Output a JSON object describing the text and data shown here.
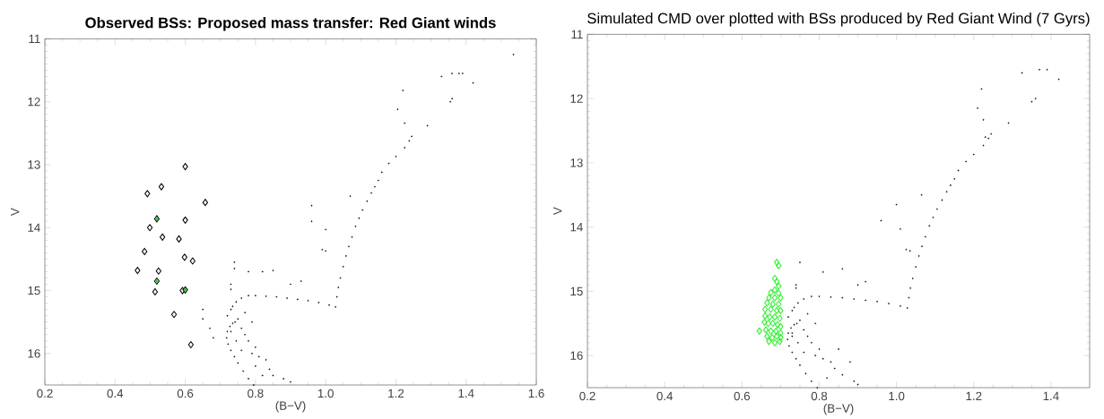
{
  "chart_data": [
    {
      "type": "scatter",
      "title": "Observed BSs: Proposed mass transfer: Red Giant winds",
      "xlabel": "(B−V)",
      "ylabel": "V",
      "xlim": [
        0.2,
        1.6
      ],
      "ylim": [
        16.5,
        11
      ],
      "xticks": [
        {
          "value": 0.2,
          "label": "0.2"
        },
        {
          "value": 0.4,
          "label": "0.4"
        },
        {
          "value": 0.6,
          "label": "0.6"
        },
        {
          "value": 0.8,
          "label": "0.8"
        },
        {
          "value": 1.0,
          "label": "1.0"
        },
        {
          "value": 1.2,
          "label": "1.2"
        },
        {
          "value": 1.4,
          "label": "1.4"
        },
        {
          "value": 1.6,
          "label": "1.6"
        }
      ],
      "yticks": [
        11,
        12,
        13,
        14,
        15,
        16
      ],
      "series": [
        {
          "color": "#000000",
          "marker": "circle",
          "x": [
            0.795,
            0.78,
            0.765,
            0.75,
            0.74,
            0.73,
            0.722,
            0.718,
            0.72,
            0.727,
            0.735,
            0.742,
            0.73,
            0.735,
            0.745,
            0.76,
            0.78,
            0.8,
            0.83,
            0.86,
            0.89,
            0.92,
            0.95,
            0.98,
            1.01,
            1.028,
            1.032,
            1.036,
            1.042,
            1.05,
            1.058,
            1.066,
            1.075,
            1.085,
            1.095,
            1.105,
            1.118,
            1.13,
            1.14,
            1.15,
            1.16,
            1.18,
            1.2,
            1.225,
            1.238,
            1.245,
            1.205,
            1.22,
            1.225,
            1.29,
            1.33,
            1.36,
            1.38,
            1.39,
            1.42,
            1.355,
            1.36,
            1.535,
            0.96,
            1.0,
            0.99,
            1.0,
            1.07,
            0.96,
            0.93,
            0.9,
            0.85,
            0.82,
            0.78,
            0.74,
            0.74,
            0.73,
            0.73,
            0.65,
            0.65,
            0.67,
            0.68,
            0.72,
            0.75,
            0.76,
            0.77,
            0.78,
            0.8,
            0.81,
            0.8,
            0.83,
            0.84,
            0.85,
            0.88,
            0.9,
            0.82,
            0.79,
            0.76,
            0.745,
            0.73,
            0.77,
            0.79
          ],
          "values": [
            16.5,
            16.4,
            16.28,
            16.15,
            16.05,
            15.95,
            15.85,
            15.75,
            15.65,
            15.57,
            15.52,
            15.5,
            15.3,
            15.25,
            15.18,
            15.12,
            15.08,
            15.08,
            15.09,
            15.1,
            15.12,
            15.14,
            15.16,
            15.19,
            15.23,
            15.26,
            15.1,
            14.95,
            14.8,
            14.62,
            14.45,
            14.3,
            14.15,
            13.98,
            13.85,
            13.72,
            13.58,
            13.45,
            13.35,
            13.25,
            13.12,
            12.98,
            12.87,
            12.73,
            12.62,
            12.55,
            12.12,
            11.82,
            12.34,
            12.38,
            11.6,
            11.55,
            11.55,
            11.55,
            11.7,
            12.0,
            11.95,
            11.25,
            13.65,
            14.03,
            14.35,
            14.37,
            13.5,
            13.9,
            14.85,
            14.9,
            14.68,
            14.7,
            14.7,
            14.55,
            14.65,
            14.9,
            14.98,
            15.3,
            15.45,
            15.6,
            15.75,
            15.4,
            15.45,
            15.6,
            15.7,
            15.8,
            15.9,
            16.05,
            16.2,
            16.1,
            16.25,
            16.35,
            16.4,
            16.45,
            16.35,
            16.0,
            15.95,
            15.8,
            15.65,
            15.35,
            15.5
          ]
        },
        {
          "color": "#000000",
          "marker": "diamond",
          "x": [
            0.6,
            0.532,
            0.492,
            0.657,
            0.519,
            0.6,
            0.499,
            0.535,
            0.582,
            0.484,
            0.598,
            0.621,
            0.464,
            0.524,
            0.519,
            0.514,
            0.592,
            0.6,
            0.568,
            0.616
          ],
          "values": [
            13.03,
            13.35,
            13.46,
            13.6,
            13.86,
            13.88,
            14.0,
            14.15,
            14.18,
            14.38,
            14.47,
            14.53,
            14.68,
            14.69,
            14.85,
            15.02,
            15.0,
            14.99,
            15.38,
            15.86
          ]
        },
        {
          "color": "#33cc33",
          "marker": "circle",
          "x": [
            0.519,
            0.519,
            0.6
          ],
          "values": [
            13.86,
            14.85,
            14.99
          ]
        }
      ]
    },
    {
      "type": "scatter",
      "title": "Simulated CMD over plotted with BSs produced by Red Giant Wind (7 Gyrs)",
      "xlabel": "(B−V)",
      "ylabel": "V",
      "xlim": [
        0.2,
        1.5
      ],
      "ylim": [
        16.5,
        11
      ],
      "xticks": [
        {
          "value": 0.2,
          "label": "0.2"
        },
        {
          "value": 0.4,
          "label": "0.4"
        },
        {
          "value": 0.6,
          "label": "0.6"
        },
        {
          "value": 0.8,
          "label": "0.8"
        },
        {
          "value": 1.0,
          "label": "1.0"
        },
        {
          "value": 1.2,
          "label": "1.2"
        },
        {
          "value": 1.4,
          "label": "1.4"
        }
      ],
      "yticks": [
        11,
        12,
        13,
        14,
        15,
        16
      ],
      "series": [
        {
          "color": "#000000",
          "marker": "circle",
          "x": [
            0.795,
            0.78,
            0.765,
            0.75,
            0.74,
            0.73,
            0.722,
            0.718,
            0.72,
            0.727,
            0.735,
            0.742,
            0.73,
            0.735,
            0.745,
            0.76,
            0.78,
            0.8,
            0.83,
            0.86,
            0.89,
            0.92,
            0.95,
            0.98,
            1.01,
            1.028,
            1.032,
            1.036,
            1.042,
            1.05,
            1.058,
            1.066,
            1.075,
            1.085,
            1.095,
            1.105,
            1.118,
            1.13,
            1.14,
            1.15,
            1.16,
            1.18,
            1.2,
            1.225,
            1.238,
            1.245,
            1.325,
            1.37,
            1.39,
            1.42,
            1.36,
            1.35,
            1.22,
            1.21,
            1.225,
            1.29,
            1.23,
            0.96,
            1.0,
            1.065,
            1.01,
            1.025,
            1.035,
            0.75,
            0.81,
            0.86,
            0.92,
            0.9,
            0.74,
            0.74,
            0.72,
            0.73,
            0.75,
            0.76,
            0.77,
            0.78,
            0.8,
            0.81,
            0.83,
            0.84,
            0.86,
            0.89,
            0.9,
            0.82,
            0.79,
            0.76,
            0.745,
            0.73,
            0.77,
            0.79,
            0.85,
            0.88
          ],
          "values": [
            16.5,
            16.4,
            16.28,
            16.15,
            16.05,
            15.95,
            15.85,
            15.75,
            15.65,
            15.57,
            15.52,
            15.5,
            15.3,
            15.25,
            15.18,
            15.12,
            15.08,
            15.08,
            15.09,
            15.1,
            15.12,
            15.14,
            15.16,
            15.19,
            15.23,
            15.26,
            15.1,
            14.95,
            14.8,
            14.62,
            14.45,
            14.3,
            14.15,
            13.98,
            13.85,
            13.72,
            13.58,
            13.45,
            13.35,
            13.25,
            13.12,
            12.98,
            12.87,
            12.73,
            12.62,
            12.55,
            11.6,
            11.55,
            11.55,
            11.7,
            12.0,
            12.05,
            11.85,
            12.15,
            12.33,
            12.38,
            12.6,
            13.9,
            13.65,
            13.5,
            14.03,
            14.35,
            14.37,
            14.55,
            14.7,
            14.65,
            14.85,
            14.9,
            14.9,
            14.95,
            15.4,
            15.7,
            15.45,
            15.6,
            15.7,
            15.8,
            15.9,
            16.05,
            16.1,
            16.2,
            16.3,
            16.4,
            16.45,
            16.35,
            16.0,
            15.95,
            15.8,
            15.65,
            15.35,
            15.5,
            15.9,
            16.1
          ]
        },
        {
          "color": "#33ee33",
          "marker": "diamond",
          "x": [
            0.69,
            0.695,
            0.685,
            0.69,
            0.695,
            0.685,
            0.675,
            0.695,
            0.67,
            0.685,
            0.7,
            0.665,
            0.68,
            0.695,
            0.66,
            0.675,
            0.69,
            0.7,
            0.66,
            0.672,
            0.685,
            0.698,
            0.658,
            0.668,
            0.68,
            0.692,
            0.7,
            0.645,
            0.662,
            0.675,
            0.688,
            0.7,
            0.665,
            0.678,
            0.69,
            0.7,
            0.67,
            0.685,
            0.698
          ],
          "values": [
            14.55,
            14.6,
            14.8,
            14.85,
            14.92,
            14.98,
            15.02,
            15.03,
            15.1,
            15.1,
            15.1,
            15.18,
            15.2,
            15.2,
            15.28,
            15.28,
            15.3,
            15.3,
            15.38,
            15.4,
            15.4,
            15.42,
            15.48,
            15.5,
            15.5,
            15.52,
            15.55,
            15.62,
            15.6,
            15.62,
            15.62,
            15.65,
            15.7,
            15.72,
            15.7,
            15.72,
            15.78,
            15.8,
            15.78
          ]
        }
      ]
    }
  ]
}
